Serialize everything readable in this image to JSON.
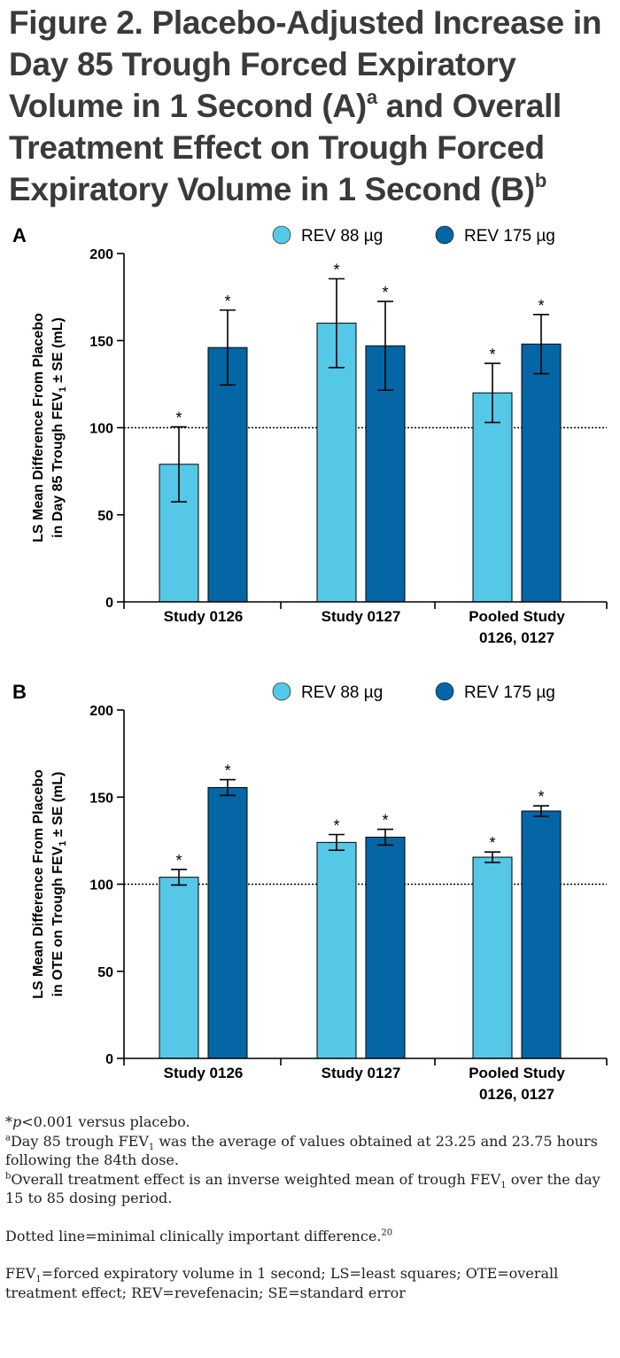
{
  "title": {
    "part1": "Figure 2. Placebo-Adjusted Increase in Day 85 Trough Forced Expiratory Volume in 1 Second (A)",
    "sup_a": "a",
    "part2": " and Overall Treatment Effect on Trough Forced Expiratory Volume in 1 Second (B)",
    "sup_b": "b"
  },
  "colors": {
    "light": "#55c8e8",
    "dark": "#0566a5",
    "axis": "#000000"
  },
  "chart_data": [
    {
      "panel_label": "A",
      "type": "bar",
      "ylabel_line1": "LS Mean Difference From Placebo",
      "ylabel_line2_pre": "in Day 85 Trough FEV",
      "ylabel_sub": "1",
      "ylabel_line2_post": " ± SE (mL)",
      "ylim": [
        0,
        200
      ],
      "yticks": [
        0,
        50,
        100,
        150,
        200
      ],
      "reference_line": 100,
      "categories": [
        [
          "Study 0126"
        ],
        [
          "Study 0127"
        ],
        [
          "Pooled Study",
          "0126, 0127"
        ]
      ],
      "series": [
        {
          "name": "REV 88 µg",
          "color": "#55c8e8",
          "values": [
            79,
            160,
            120
          ],
          "se": [
            21.5,
            25.5,
            17
          ],
          "annotation": [
            "*",
            "*",
            "*"
          ]
        },
        {
          "name": "REV 175 µg",
          "color": "#0566a5",
          "values": [
            146,
            147,
            148
          ],
          "se": [
            21.5,
            25.5,
            17
          ],
          "annotation": [
            "*",
            "*",
            "*"
          ]
        }
      ],
      "legend_position": "top-right"
    },
    {
      "panel_label": "B",
      "type": "bar",
      "ylabel_line1": "LS Mean Difference From Placebo",
      "ylabel_line2_pre": "in OTE on Trough FEV",
      "ylabel_sub": "1",
      "ylabel_line2_post": " ± SE (mL)",
      "ylim": [
        0,
        200
      ],
      "yticks": [
        0,
        50,
        100,
        150,
        200
      ],
      "reference_line": 100,
      "categories": [
        [
          "Study 0126"
        ],
        [
          "Study 0127"
        ],
        [
          "Pooled Study",
          "0126, 0127"
        ]
      ],
      "series": [
        {
          "name": "REV 88 µg",
          "color": "#55c8e8",
          "values": [
            104,
            124,
            115.5
          ],
          "se": [
            4.5,
            4.5,
            3
          ],
          "annotation": [
            "*",
            "*",
            "*"
          ]
        },
        {
          "name": "REV 175 µg",
          "color": "#0566a5",
          "values": [
            155.5,
            127,
            142
          ],
          "se": [
            4.5,
            4.5,
            3
          ],
          "annotation": [
            "*",
            "*",
            "*"
          ]
        }
      ],
      "legend_position": "top-right"
    }
  ],
  "footnotes": {
    "p_star": "*",
    "p_italic": "p",
    "p_rest": "<0.001 versus placebo.",
    "a_sup": "a",
    "a_pre": "Day 85 trough FEV",
    "a_sub": "1",
    "a_post": " was the average of values obtained at 23.25 and 23.75 hours following the 84th dose.",
    "b_sup": "b",
    "b_pre": "Overall treatment effect is an inverse weighted mean of trough FEV",
    "b_sub": "1",
    "b_post": " over the day 15 to 85 dosing period.",
    "dotted_pre": "Dotted line=minimal clinically important difference.",
    "dotted_sup": "20",
    "abbr_pre": "FEV",
    "abbr_sub": "1",
    "abbr_post": "=forced expiratory volume in 1 second; LS=least squares; OTE=overall treatment effect; REV=revefenacin; SE=standard error"
  }
}
